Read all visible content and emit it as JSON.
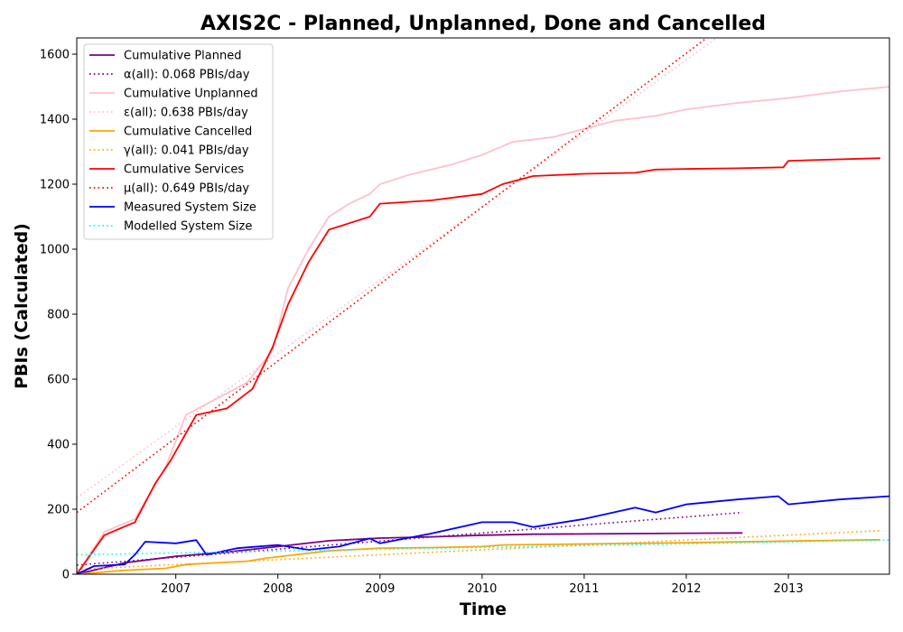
{
  "chart_data": {
    "type": "line",
    "title": "AXIS2C - Planned, Unplanned, Done  and Cancelled",
    "xlabel": "Time",
    "ylabel": "PBIs (Calculated)",
    "xlim": [
      2006.03,
      2013.99
    ],
    "ylim": [
      0,
      1650
    ],
    "x_ticks": [
      2007,
      2008,
      2009,
      2010,
      2011,
      2012,
      2013
    ],
    "y_ticks": [
      0,
      200,
      400,
      600,
      800,
      1000,
      1200,
      1400,
      1600
    ],
    "grid": false,
    "legend_position": "top-left",
    "series": [
      {
        "name": "Cumulative Planned",
        "color": "#800080",
        "style": "solid",
        "x": [
          2006.03,
          2006.5,
          2007.0,
          2007.5,
          2008.0,
          2008.5,
          2009.0,
          2009.5,
          2010.0,
          2010.5,
          2011.0,
          2011.5,
          2012.0,
          2012.55
        ],
        "y": [
          0,
          35,
          55,
          68,
          85,
          103,
          111,
          115,
          120,
          123,
          124,
          125,
          126,
          127
        ]
      },
      {
        "name": "α(all): 0.068 PBIs/day",
        "color": "#800080",
        "style": "dotted",
        "x": [
          2006.03,
          2012.55
        ],
        "y": [
          28,
          190
        ]
      },
      {
        "name": "Cumulative Unplanned",
        "color": "#ffc0cb",
        "style": "solid",
        "x": [
          2006.03,
          2006.3,
          2006.6,
          2006.9,
          2007.1,
          2007.4,
          2007.7,
          2007.95,
          2008.1,
          2008.3,
          2008.5,
          2008.7,
          2008.9,
          2009.0,
          2009.3,
          2009.7,
          2010.0,
          2010.3,
          2010.7,
          2011.0,
          2011.3,
          2011.7,
          2012.0,
          2012.5,
          2013.0,
          2013.5,
          2013.99
        ],
        "y": [
          0,
          130,
          170,
          330,
          490,
          540,
          590,
          690,
          880,
          1000,
          1100,
          1140,
          1170,
          1200,
          1230,
          1260,
          1290,
          1330,
          1345,
          1370,
          1395,
          1410,
          1430,
          1450,
          1465,
          1485,
          1500
        ]
      },
      {
        "name": "ε(all): 0.638 PBIs/day",
        "color": "#ffc0cb",
        "style": "dotted",
        "x": [
          2006.03,
          2012.3
        ],
        "y": [
          235,
          1650
        ]
      },
      {
        "name": "Cumulative Cancelled",
        "color": "#ffa500",
        "style": "solid",
        "x": [
          2006.03,
          2006.5,
          2006.9,
          2007.1,
          2007.7,
          2007.9,
          2008.5,
          2009.0,
          2009.5,
          2010.0,
          2010.2,
          2011.0,
          2012.0,
          2013.0,
          2013.9
        ],
        "y": [
          0,
          12,
          18,
          30,
          40,
          50,
          72,
          80,
          82,
          85,
          90,
          93,
          97,
          102,
          106
        ]
      },
      {
        "name": "γ(all): 0.041 PBIs/day",
        "color": "#ffa500",
        "style": "dotted",
        "x": [
          2006.03,
          2013.9
        ],
        "y": [
          15,
          134
        ]
      },
      {
        "name": "Cumulative Services",
        "color": "#ff0000",
        "style": "solid",
        "x": [
          2006.03,
          2006.3,
          2006.6,
          2006.8,
          2006.95,
          2007.2,
          2007.5,
          2007.75,
          2007.95,
          2008.1,
          2008.3,
          2008.5,
          2008.7,
          2008.9,
          2009.0,
          2009.5,
          2010.0,
          2010.2,
          2010.5,
          2011.0,
          2011.5,
          2011.7,
          2012.0,
          2012.5,
          2012.95,
          2013.0,
          2013.9
        ],
        "y": [
          0,
          120,
          160,
          280,
          350,
          490,
          510,
          570,
          700,
          830,
          960,
          1060,
          1080,
          1100,
          1140,
          1150,
          1170,
          1200,
          1225,
          1232,
          1235,
          1245,
          1247,
          1249,
          1252,
          1272,
          1280
        ]
      },
      {
        "name": "μ(all): 0.649 PBIs/day",
        "color": "#ff0000",
        "style": "dotted",
        "x": [
          2006.03,
          2012.2
        ],
        "y": [
          190,
          1650
        ]
      },
      {
        "name": "Measured System Size",
        "color": "#0000ff",
        "style": "solid",
        "x": [
          2006.03,
          2006.2,
          2006.5,
          2006.6,
          2006.7,
          2007.0,
          2007.2,
          2007.3,
          2007.6,
          2008.0,
          2008.3,
          2008.6,
          2008.9,
          2009.0,
          2009.5,
          2010.0,
          2010.3,
          2010.5,
          2011.0,
          2011.5,
          2011.7,
          2012.0,
          2012.5,
          2012.9,
          2013.0,
          2013.5,
          2013.99
        ],
        "y": [
          0,
          25,
          30,
          60,
          100,
          95,
          105,
          60,
          80,
          90,
          75,
          85,
          110,
          95,
          125,
          160,
          160,
          145,
          170,
          205,
          190,
          215,
          230,
          240,
          215,
          230,
          240
        ]
      },
      {
        "name": "Modelled System Size",
        "color": "#00ffff",
        "style": "dotted",
        "x": [
          2006.03,
          2013.99
        ],
        "y": [
          60,
          105
        ]
      }
    ]
  }
}
